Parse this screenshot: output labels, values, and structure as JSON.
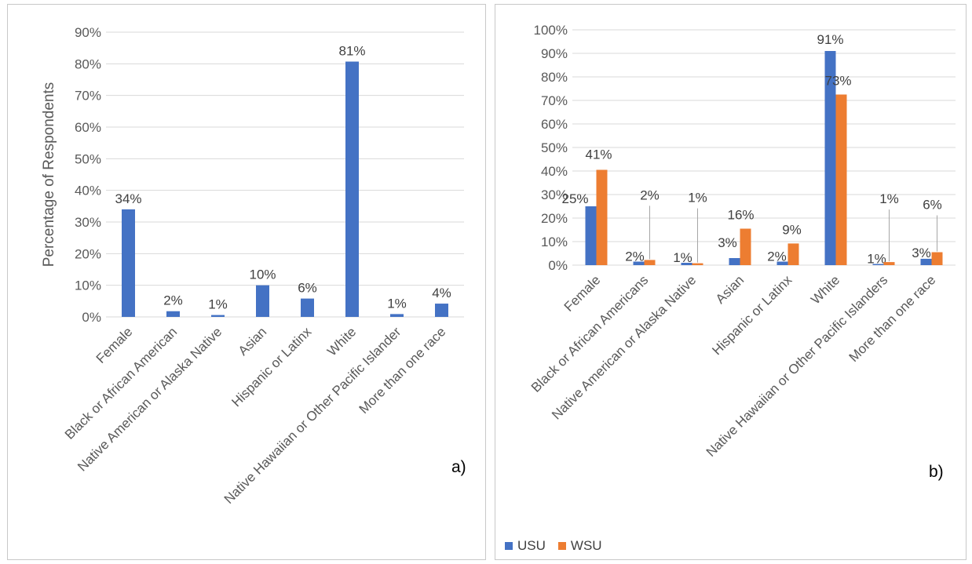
{
  "chart_data": [
    {
      "type": "bar",
      "panel_tag": "a)",
      "ylabel": "Percentage of Respondents",
      "xlabel": "",
      "title": "",
      "ylim": [
        0,
        90
      ],
      "yticks": [
        "0%",
        "10%",
        "20%",
        "30%",
        "40%",
        "50%",
        "60%",
        "70%",
        "80%",
        "90%"
      ],
      "grid": true,
      "categories": [
        "Female",
        "Black or African American",
        "Native American or Alaska Native",
        "Asian",
        "Hispanic or Latinx",
        "White",
        "Native Hawaiian or Other Pacific Islander",
        "More than one race"
      ],
      "series": [
        {
          "values": [
            34,
            1.8,
            0.6,
            10,
            5.8,
            80.7,
            0.9,
            4.2
          ],
          "labels": [
            "34%",
            "2%",
            "1%",
            "10%",
            "6%",
            "81%",
            "1%",
            "4%"
          ],
          "color": "#4472C4"
        }
      ]
    },
    {
      "type": "bar",
      "panel_tag": "b)",
      "ylabel": "",
      "xlabel": "",
      "title": "",
      "ylim": [
        0,
        100
      ],
      "yticks": [
        "0%",
        "10%",
        "20%",
        "30%",
        "40%",
        "50%",
        "60%",
        "70%",
        "80%",
        "90%",
        "100%"
      ],
      "grid": true,
      "legend_position": "bottom-left",
      "categories": [
        "Female",
        "Black or African Americans",
        "Native American or Alaska Native",
        "Asian",
        "Hispanic or Latinx",
        "White",
        "Native Hawaiian or Other Pacific Islanders",
        "More than one race"
      ],
      "series": [
        {
          "name": "USU",
          "values": [
            25,
            1.5,
            1,
            3,
            1.5,
            91,
            0.5,
            2.7
          ],
          "labels": [
            "25%",
            "2%",
            "1%",
            "3%",
            "2%",
            "91%",
            "1%",
            "3%"
          ],
          "color": "#4472C4"
        },
        {
          "name": "WSU",
          "values": [
            40.5,
            2.2,
            0.8,
            15.5,
            9.2,
            72.5,
            1.3,
            5.5
          ],
          "labels": [
            "41%",
            "2%",
            "1%",
            "16%",
            "9%",
            "73%",
            "1%",
            "6%"
          ],
          "color": "#ED7D31"
        }
      ]
    }
  ]
}
